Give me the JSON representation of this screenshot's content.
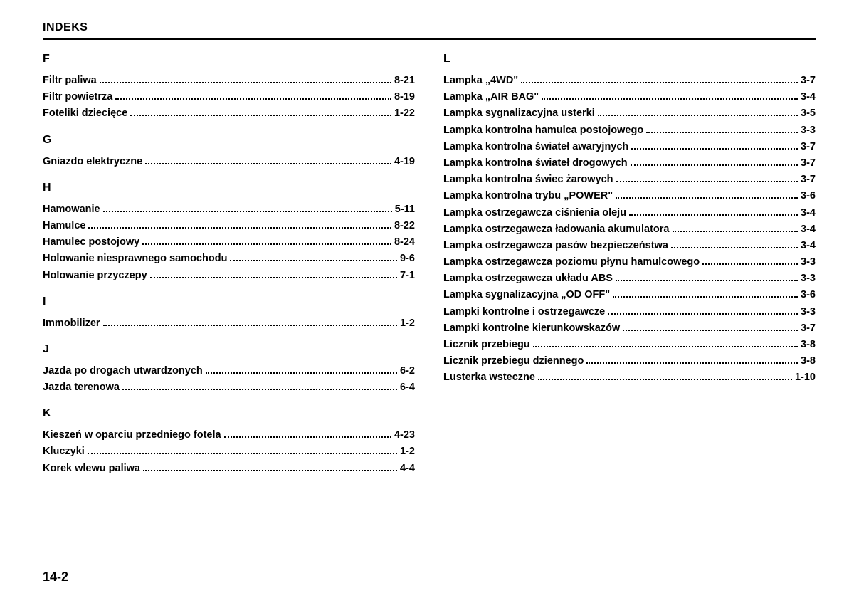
{
  "header": {
    "title": "INDEKS"
  },
  "page_number": "14-2",
  "left_column": [
    {
      "letter": "F",
      "entries": [
        {
          "label": "Filtr paliwa",
          "page": "8-21"
        },
        {
          "label": "Filtr powietrza",
          "page": "8-19"
        },
        {
          "label": "Foteliki dziecięce",
          "page": "1-22"
        }
      ]
    },
    {
      "letter": "G",
      "entries": [
        {
          "label": "Gniazdo elektryczne",
          "page": "4-19"
        }
      ]
    },
    {
      "letter": "H",
      "entries": [
        {
          "label": "Hamowanie",
          "page": "5-11"
        },
        {
          "label": "Hamulce",
          "page": "8-22"
        },
        {
          "label": "Hamulec postojowy",
          "page": "8-24"
        },
        {
          "label": "Holowanie niesprawnego samochodu",
          "page": "9-6"
        },
        {
          "label": "Holowanie przyczepy",
          "page": "7-1"
        }
      ]
    },
    {
      "letter": "I",
      "entries": [
        {
          "label": "Immobilizer",
          "page": "1-2"
        }
      ]
    },
    {
      "letter": "J",
      "entries": [
        {
          "label": "Jazda po drogach utwardzonych",
          "page": "6-2"
        },
        {
          "label": "Jazda terenowa",
          "page": "6-4"
        }
      ]
    },
    {
      "letter": "K",
      "entries": [
        {
          "label": "Kieszeń w oparciu przedniego fotela",
          "page": "4-23"
        },
        {
          "label": "Kluczyki",
          "page": "1-2"
        },
        {
          "label": "Korek wlewu paliwa",
          "page": "4-4"
        }
      ]
    }
  ],
  "right_column": [
    {
      "letter": "L",
      "entries": [
        {
          "label": "Lampka „4WD\"",
          "page": "3-7"
        },
        {
          "label": "Lampka „AIR BAG\"",
          "page": "3-4"
        },
        {
          "label": "Lampka sygnalizacyjna usterki",
          "page": "3-5"
        },
        {
          "label": "Lampka kontrolna hamulca postojowego",
          "page": "3-3"
        },
        {
          "label": "Lampka kontrolna świateł awaryjnych",
          "page": "3-7"
        },
        {
          "label": "Lampka kontrolna świateł drogowych",
          "page": "3-7"
        },
        {
          "label": "Lampka kontrolna świec żarowych",
          "page": "3-7"
        },
        {
          "label": "Lampka kontrolna trybu „POWER\"",
          "page": "3-6"
        },
        {
          "label": "Lampka ostrzegawcza ciśnienia oleju",
          "page": "3-4"
        },
        {
          "label": "Lampka ostrzegawcza ładowania akumulatora",
          "page": "3-4"
        },
        {
          "label": "Lampka ostrzegawcza pasów bezpieczeństwa",
          "page": "3-4"
        },
        {
          "label": "Lampka ostrzegawcza poziomu płynu hamulcowego",
          "page": "3-3"
        },
        {
          "label": "Lampka ostrzegawcza układu ABS",
          "page": "3-3"
        },
        {
          "label": "Lampka sygnalizacyjna „OD OFF\"",
          "page": "3-6"
        },
        {
          "label": "Lampki kontrolne i ostrzegawcze",
          "page": "3-3"
        },
        {
          "label": "Lampki kontrolne kierunkowskazów",
          "page": "3-7"
        },
        {
          "label": "Licznik przebiegu",
          "page": "3-8"
        },
        {
          "label": "Licznik przebiegu dziennego",
          "page": "3-8"
        },
        {
          "label": "Lusterka wsteczne",
          "page": "1-10"
        }
      ]
    }
  ]
}
